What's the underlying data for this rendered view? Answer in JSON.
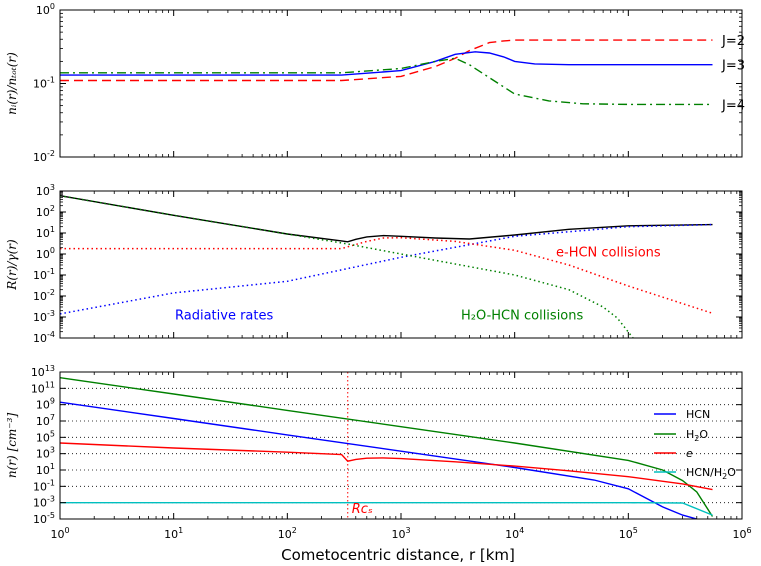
{
  "chart_data": [
    {
      "type": "line",
      "panel": "top",
      "xscale": "log",
      "yscale": "log",
      "xlim": [
        1,
        1000000
      ],
      "ylim": [
        0.01,
        1
      ],
      "ylabel": "n_i(r)/n_tot(r)",
      "yticks": [
        0.01,
        0.1,
        1
      ],
      "yticklabels": [
        "10^-2",
        "10^-1",
        "10^0"
      ],
      "series": [
        {
          "name": "J=2",
          "color": "#ff0000",
          "style": "dashed",
          "x": [
            1,
            100,
            300,
            1000,
            2000,
            3000,
            4000,
            6000,
            8000,
            10000,
            20000,
            100000,
            550000
          ],
          "y": [
            0.11,
            0.11,
            0.11,
            0.125,
            0.17,
            0.22,
            0.28,
            0.36,
            0.38,
            0.39,
            0.39,
            0.39,
            0.39
          ]
        },
        {
          "name": "J=3",
          "color": "#0000ff",
          "style": "solid",
          "x": [
            1,
            100,
            300,
            1000,
            2000,
            3000,
            4500,
            6000,
            8000,
            10000,
            15000,
            30000,
            100000,
            550000
          ],
          "y": [
            0.13,
            0.13,
            0.13,
            0.15,
            0.2,
            0.25,
            0.27,
            0.26,
            0.23,
            0.2,
            0.185,
            0.18,
            0.18,
            0.18
          ]
        },
        {
          "name": "J=4",
          "color": "#008000",
          "style": "dashdot",
          "x": [
            1,
            100,
            300,
            1000,
            2000,
            3000,
            4000,
            6000,
            8000,
            10000,
            20000,
            40000,
            100000,
            550000
          ],
          "y": [
            0.14,
            0.14,
            0.14,
            0.16,
            0.2,
            0.22,
            0.18,
            0.12,
            0.09,
            0.072,
            0.058,
            0.053,
            0.052,
            0.052
          ]
        }
      ],
      "annotations": [
        "J=2",
        "J=3",
        "J=4"
      ]
    },
    {
      "type": "line",
      "panel": "middle",
      "xscale": "log",
      "yscale": "log",
      "xlim": [
        1,
        1000000
      ],
      "ylim": [
        0.0001,
        1000
      ],
      "ylabel": "R(r)/γ(r)",
      "yticks": [
        0.0001,
        0.001,
        0.01,
        0.1,
        1,
        10,
        100,
        1000
      ],
      "yticklabels": [
        "10^-4",
        "10^-3",
        "10^-2",
        "10^-1",
        "10^0",
        "10^1",
        "10^2",
        "10^3"
      ],
      "series": [
        {
          "name": "Total",
          "color": "#000000",
          "style": "solid",
          "x": [
            1,
            10,
            100,
            300,
            340,
            400,
            500,
            700,
            1000,
            2000,
            4000,
            10000,
            30000,
            100000,
            550000
          ],
          "y": [
            600,
            70,
            9,
            4.2,
            3.8,
            5,
            6.5,
            7.5,
            7,
            5.8,
            5.2,
            8,
            15,
            22,
            25
          ]
        },
        {
          "name": "Radiative rates",
          "color": "#0000ff",
          "style": "dotted",
          "x": [
            1,
            10,
            100,
            1000,
            10000,
            100000,
            550000
          ],
          "y": [
            0.0014,
            0.014,
            0.05,
            0.7,
            7,
            20,
            25
          ]
        },
        {
          "name": "e-HCN collisions",
          "color": "#ff0000",
          "style": "dotted",
          "x": [
            1,
            100,
            300,
            340,
            500,
            700,
            1000,
            3000,
            10000,
            30000,
            100000,
            550000
          ],
          "y": [
            1.8,
            1.8,
            1.8,
            2.2,
            4,
            5.8,
            6,
            4,
            1.5,
            0.3,
            0.03,
            0.0015
          ]
        },
        {
          "name": "H2O-HCN collisions",
          "color": "#008000",
          "style": "dotted",
          "x": [
            1,
            10,
            100,
            340,
            1000,
            10000,
            30000,
            60000,
            80000,
            110000
          ],
          "y": [
            600,
            70,
            9,
            3,
            1,
            0.1,
            0.02,
            0.003,
            0.0009,
            0.0001
          ]
        }
      ],
      "annotations": [
        "Radiative rates",
        "e-HCN collisions",
        "H₂O-HCN collisions"
      ]
    },
    {
      "type": "line",
      "panel": "bottom",
      "xscale": "log",
      "yscale": "log",
      "xlim": [
        1,
        1000000
      ],
      "ylim": [
        1e-05,
        10000000000000.0
      ],
      "xlabel": "Cometocentric distance, r [km]",
      "ylabel": "n(r) [cm^-3]",
      "xticks": [
        1,
        10,
        100,
        1000,
        10000,
        100000,
        1000000
      ],
      "xticklabels": [
        "10^0",
        "10^1",
        "10^2",
        "10^3",
        "10^4",
        "10^5",
        "10^6"
      ],
      "yticks": [
        1e-05,
        0.001,
        0.1,
        10,
        1000,
        100000,
        10000000,
        1000000000,
        100000000000,
        10000000000000
      ],
      "yticklabels": [
        "10^-5",
        "10^-3",
        "10^-1",
        "10^1",
        "10^3",
        "10^5",
        "10^7",
        "10^9",
        "10^11",
        "10^13"
      ],
      "vline": {
        "x": 340,
        "label": "R_cs",
        "color": "#ff0000"
      },
      "series": [
        {
          "name": "HCN",
          "color": "#0000ff",
          "style": "solid",
          "x": [
            1,
            10,
            100,
            1000,
            10000,
            50000,
            100000,
            200000,
            300000,
            400000
          ],
          "y": [
            2000000000.0,
            20000000.0,
            200000.0,
            2000,
            20,
            0.6,
            0.05,
            0.0003,
            3e-05,
            1e-05
          ]
        },
        {
          "name": "H2O",
          "color": "#008000",
          "style": "solid",
          "x": [
            1,
            10,
            100,
            1000,
            10000,
            100000,
            200000,
            300000,
            400000,
            550000
          ],
          "y": [
            2000000000000.0,
            20000000000.0,
            200000000.0,
            2000000.0,
            20000,
            150,
            10,
            0.5,
            0.02,
            2e-05
          ]
        },
        {
          "name": "e",
          "color": "#ff0000",
          "style": "solid",
          "x": [
            1,
            10,
            100,
            300,
            340,
            400,
            500,
            700,
            1000,
            3000,
            10000,
            30000,
            100000,
            300000,
            550000
          ],
          "y": [
            20000,
            5000,
            1500,
            800,
            120,
            200,
            280,
            300,
            250,
            100,
            30,
            8,
            1.5,
            0.2,
            0.04
          ]
        },
        {
          "name": "HCN/H2O",
          "color": "#00bfbf",
          "style": "solid",
          "x": [
            1,
            10,
            100,
            1000,
            10000,
            100000,
            300000,
            550000
          ],
          "y": [
            0.001,
            0.001,
            0.001,
            0.001,
            0.001,
            0.001,
            0.0009,
            3e-05
          ]
        }
      ],
      "legend": {
        "placement": "right",
        "entries": [
          "HCN",
          "H2O",
          "e",
          "HCN/H2O"
        ]
      }
    }
  ],
  "labels": {
    "xlabel": "Cometocentric distance, r [km]",
    "top_ylabel": "nᵢ(r)/nₜₒₜ(r)",
    "middle_ylabel": "R(r)/γ(r)",
    "bottom_ylabel": "n(r)  [cm⁻³]",
    "rcs": "Rᴄₛ"
  }
}
